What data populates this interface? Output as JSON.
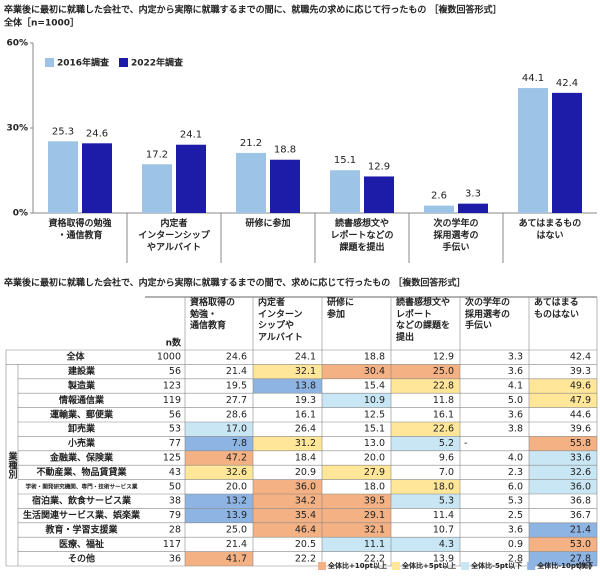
{
  "chart_data": {
    "type": "bar",
    "title": "卒業後に最初に就職した会社で、内定から実際に就職するまでの間に、就職先の求めに応じて行ったもの ［複数回答形式］",
    "subtitle": "全体［n=1000］",
    "categories": [
      "資格取得の勉強\n・通信教育",
      "内定者\nインターンシップ\nやアルバイト",
      "研修に参加",
      "読書感想文や\nレポートなどの\n課題を提出",
      "次の学年の\n採用選考の\n手伝い",
      "あてはまるもの\nはない"
    ],
    "series": [
      {
        "name": "2016年調査",
        "color": "#9dc3e6",
        "values": [
          25.3,
          17.2,
          21.2,
          15.1,
          2.6,
          44.1
        ]
      },
      {
        "name": "2022年調査",
        "color": "#1c1ca8",
        "values": [
          24.6,
          24.1,
          18.8,
          12.9,
          3.3,
          42.4
        ]
      }
    ],
    "ylim": [
      0,
      60
    ],
    "yticks": [
      {
        "value": 0,
        "label": "0%"
      },
      {
        "value": 30,
        "label": "30%"
      },
      {
        "value": 60,
        "label": "60%"
      }
    ],
    "grid": false
  },
  "table": {
    "title": "卒業後に最初に就職した会社で、内定から実際に就職するまでの間で、求めに応じて行ったもの ［複数回答形式］",
    "group_label": "業種別",
    "columns": [
      "n数",
      "資格取得の\n勉強・\n通信教育",
      "内定者\nインターン\nシップや\nアルバイト",
      "研修に\n参加",
      "読書感想文や\nレポート\nなどの課題を\n提出",
      "次の学年の\n採用選考の\n手伝い",
      "あてはまる\nものはない"
    ],
    "rows": [
      {
        "label": "全体",
        "n": 1000,
        "cells": [
          "24.6",
          "24.1",
          "18.8",
          "12.9",
          "3.3",
          "42.4"
        ],
        "colors": [
          null,
          null,
          null,
          null,
          null,
          null
        ]
      },
      {
        "label": "建設業",
        "n": 56,
        "cells": [
          "21.4",
          "32.1",
          "30.4",
          "25.0",
          "3.6",
          "39.3"
        ],
        "colors": [
          null,
          "#ffe699",
          "#f4b183",
          "#f4b183",
          null,
          null
        ]
      },
      {
        "label": "製造業",
        "n": 123,
        "cells": [
          "19.5",
          "13.8",
          "15.4",
          "22.8",
          "4.1",
          "49.6"
        ],
        "colors": [
          null,
          "#8eb4e3",
          null,
          "#ffe699",
          null,
          "#ffe699"
        ]
      },
      {
        "label": "情報通信業",
        "n": 119,
        "cells": [
          "27.7",
          "19.3",
          "10.9",
          "11.8",
          "5.0",
          "47.9"
        ],
        "colors": [
          null,
          null,
          "#c9e6f5",
          null,
          null,
          "#ffe699"
        ]
      },
      {
        "label": "運輸業、郵便業",
        "n": 56,
        "cells": [
          "28.6",
          "16.1",
          "12.5",
          "16.1",
          "3.6",
          "44.6"
        ],
        "colors": [
          null,
          null,
          null,
          null,
          null,
          null
        ]
      },
      {
        "label": "卸売業",
        "n": 53,
        "cells": [
          "17.0",
          "26.4",
          "15.1",
          "22.6",
          "3.8",
          "39.6"
        ],
        "colors": [
          "#c9e6f5",
          null,
          null,
          "#ffe699",
          null,
          null
        ]
      },
      {
        "label": "小売業",
        "n": 77,
        "cells": [
          "7.8",
          "31.2",
          "13.0",
          "5.2",
          "-",
          "55.8"
        ],
        "colors": [
          "#8eb4e3",
          "#ffe699",
          null,
          "#c9e6f5",
          null,
          "#f4b183"
        ]
      },
      {
        "label": "金融業、保険業",
        "n": 125,
        "cells": [
          "47.2",
          "18.4",
          "20.0",
          "9.6",
          "4.0",
          "33.6"
        ],
        "colors": [
          "#f4b183",
          null,
          null,
          null,
          null,
          "#c9e6f5"
        ]
      },
      {
        "label": "不動産業、物品賃貸業",
        "n": 43,
        "cells": [
          "32.6",
          "20.9",
          "27.9",
          "7.0",
          "2.3",
          "32.6"
        ],
        "colors": [
          "#ffe699",
          null,
          "#ffe699",
          null,
          null,
          "#c9e6f5"
        ]
      },
      {
        "label": "学術・開発研究機関、専門・技術サービス業",
        "n": 50,
        "cells": [
          "20.0",
          "36.0",
          "18.0",
          "18.0",
          "6.0",
          "36.0"
        ],
        "colors": [
          null,
          "#f4b183",
          null,
          "#ffe699",
          null,
          "#c9e6f5"
        ]
      },
      {
        "label": "宿泊業、飲食サービス業",
        "n": 38,
        "cells": [
          "13.2",
          "34.2",
          "39.5",
          "5.3",
          "5.3",
          "36.8"
        ],
        "colors": [
          "#8eb4e3",
          "#f4b183",
          "#f4b183",
          "#c9e6f5",
          null,
          null
        ]
      },
      {
        "label": "生活関連サービス業、娯楽業",
        "n": 79,
        "cells": [
          "13.9",
          "35.4",
          "29.1",
          "11.4",
          "2.5",
          "36.7"
        ],
        "colors": [
          "#8eb4e3",
          "#f4b183",
          "#f4b183",
          null,
          null,
          null
        ]
      },
      {
        "label": "教育・学習支援業",
        "n": 28,
        "cells": [
          "25.0",
          "46.4",
          "32.1",
          "10.7",
          "3.6",
          "21.4"
        ],
        "colors": [
          null,
          "#f4b183",
          "#f4b183",
          null,
          null,
          "#8eb4e3"
        ]
      },
      {
        "label": "医療、福祉",
        "n": 117,
        "cells": [
          "21.4",
          "20.5",
          "11.1",
          "4.3",
          "0.9",
          "53.0"
        ],
        "colors": [
          null,
          null,
          "#c9e6f5",
          "#c9e6f5",
          null,
          "#f4b183"
        ]
      },
      {
        "label": "その他",
        "n": 36,
        "cells": [
          "41.7",
          "22.2",
          "22.2",
          "13.9",
          "2.8",
          "27.8"
        ],
        "colors": [
          "#f4b183",
          null,
          null,
          null,
          null,
          "#8eb4e3"
        ]
      }
    ],
    "legend": [
      {
        "label": "全体比+10pt以上",
        "color": "#f4b183"
      },
      {
        "label": "全体比+5pt以上",
        "color": "#ffe699"
      },
      {
        "label": "全体比-5pt以下",
        "color": "#c9e6f5"
      },
      {
        "label": "全体比-10pt以下",
        "color": "#8eb4e3"
      }
    ],
    "unit": "（％）"
  }
}
